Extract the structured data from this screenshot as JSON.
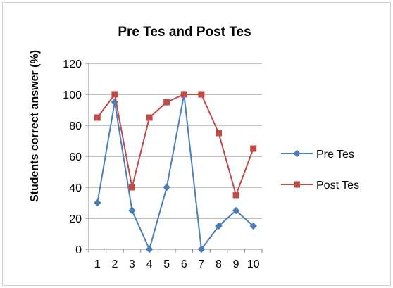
{
  "chart_data": {
    "type": "line",
    "title": "Pre Tes and Post Tes",
    "xlabel": "",
    "ylabel": "Students correct answer (%)",
    "categories": [
      "1",
      "2",
      "3",
      "4",
      "5",
      "6",
      "7",
      "8",
      "9",
      "10"
    ],
    "ylim": [
      0,
      120
    ],
    "yticks": [
      0,
      20,
      40,
      60,
      80,
      100,
      120
    ],
    "grid": "horizontal",
    "legend_position": "right",
    "series": [
      {
        "name": "Pre Tes",
        "color": "#4a7ebb",
        "marker": "diamond",
        "values": [
          30,
          95,
          25,
          0,
          40,
          100,
          0,
          15,
          25,
          15
        ]
      },
      {
        "name": "Post Tes",
        "color": "#be4b48",
        "marker": "square",
        "values": [
          85,
          100,
          40,
          85,
          95,
          100,
          100,
          75,
          35,
          65
        ]
      }
    ]
  }
}
